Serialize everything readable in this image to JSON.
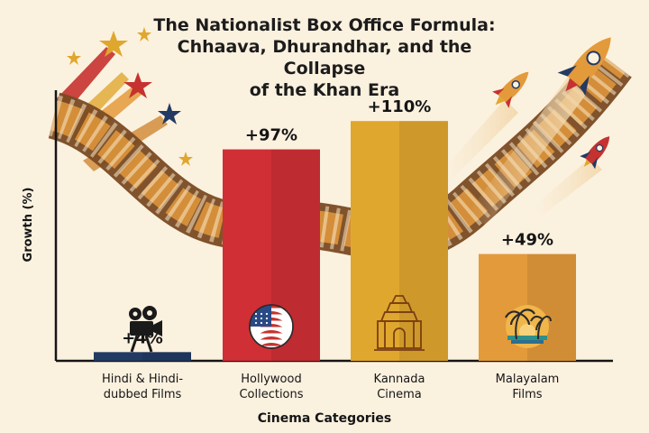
{
  "header": {
    "title_line1": "The Nationalist Box Office Formula:",
    "title_line2": "Chhaava, Dhurandhar, and the Collapse",
    "title_line3": "of the Khan Era"
  },
  "chart_data": {
    "type": "bar",
    "title": "The Nationalist Box Office Formula: Chhaava, Dhurandhar, and the Collapse of the Khan Era",
    "xlabel": "Cinema Categories",
    "ylabel": "Growth (%)",
    "categories": [
      [
        "Hindi & Hindi-",
        "dubbed Films"
      ],
      [
        "Hollywood",
        "Collections"
      ],
      [
        "Kannada",
        "Cinema"
      ],
      [
        "Malayalam",
        "Films"
      ]
    ],
    "values": [
      4,
      97,
      110,
      49
    ],
    "value_labels": [
      "+4%",
      "+97%",
      "+110%",
      "+49%"
    ],
    "bar_colors": [
      "#233a63",
      "#cf2f35",
      "#e0a72e",
      "#e39a3b"
    ],
    "bar_icons": [
      "film-camera-icon",
      "us-flag-icon",
      "temple-icon",
      "palm-beach-icon"
    ],
    "ylim": [
      0,
      120
    ],
    "grid": false,
    "legend": "none"
  }
}
